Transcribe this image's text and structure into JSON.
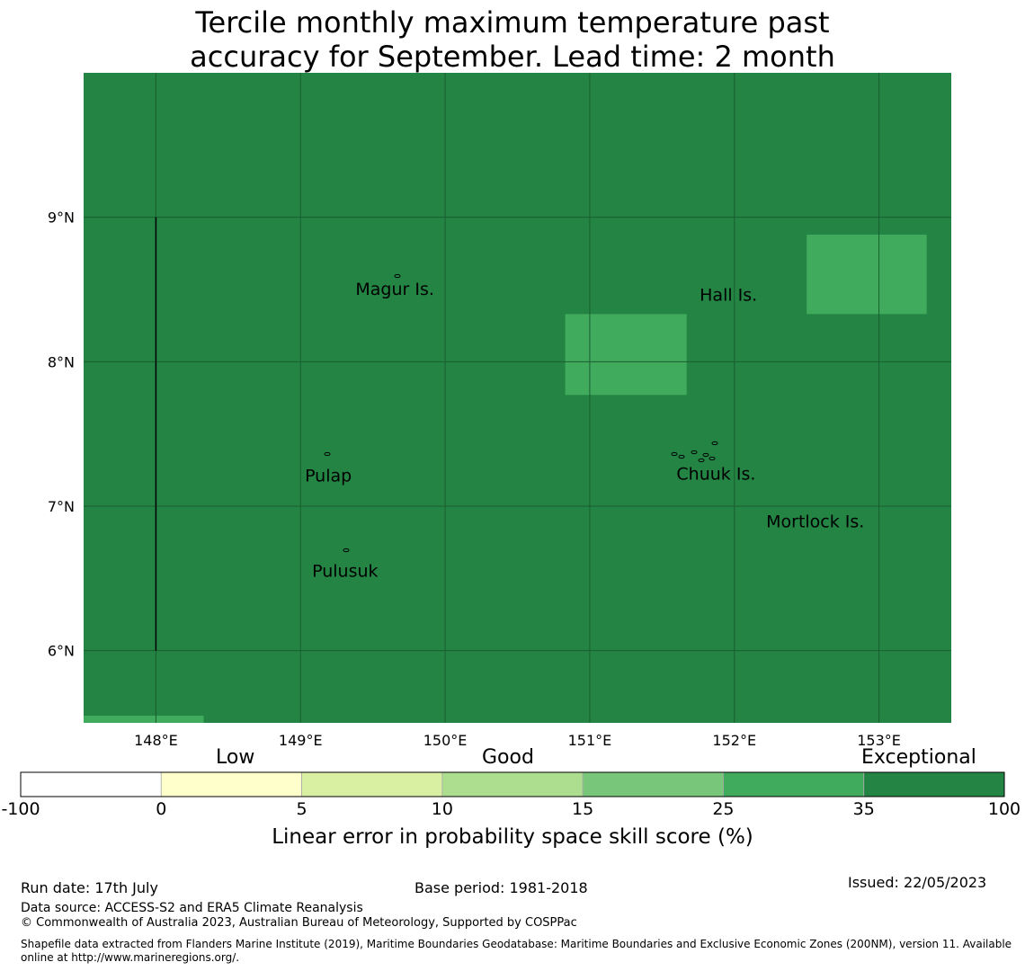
{
  "title": {
    "line1": "Tercile monthly maximum temperature past",
    "line2": "accuracy for September. Lead time: 2 month"
  },
  "map": {
    "lon_range": [
      147.5,
      153.5
    ],
    "lat_range": [
      5.5,
      10.0
    ],
    "x_ticks": [
      {
        "lon": 148,
        "label": "148°E"
      },
      {
        "lon": 149,
        "label": "149°E"
      },
      {
        "lon": 150,
        "label": "150°E"
      },
      {
        "lon": 151,
        "label": "151°E"
      },
      {
        "lon": 152,
        "label": "152°E"
      },
      {
        "lon": 153,
        "label": "153°E"
      }
    ],
    "y_ticks": [
      {
        "lat": 6,
        "label": "6°N"
      },
      {
        "lat": 7,
        "label": "7°N"
      },
      {
        "lat": 8,
        "label": "8°N"
      },
      {
        "lat": 9,
        "label": "9°N"
      }
    ],
    "background_color": "#238443",
    "gridline_color": "#1a5e30",
    "cells": [
      {
        "lon0": 150.83,
        "lon1": 151.67,
        "lat0": 7.77,
        "lat1": 8.33,
        "color": "#41ab5d"
      },
      {
        "lon0": 152.5,
        "lon1": 153.33,
        "lat0": 8.33,
        "lat1": 8.88,
        "color": "#41ab5d"
      },
      {
        "lon0": 147.5,
        "lon1": 148.33,
        "lat0": 5.5,
        "lat1": 5.55,
        "color": "#41ab5d"
      }
    ],
    "boundary_line": {
      "lon": 148.0,
      "lat0": 6.0,
      "lat1": 9.0
    },
    "places": [
      {
        "name": "Magur Is.",
        "lon": 149.38,
        "lat": 8.5
      },
      {
        "name": "Hall Is.",
        "lon": 151.76,
        "lat": 8.46
      },
      {
        "name": "Pulap",
        "lon": 149.03,
        "lat": 7.21
      },
      {
        "name": "Chuuk Is.",
        "lon": 151.6,
        "lat": 7.22
      },
      {
        "name": "Mortlock Is.",
        "lon": 152.22,
        "lat": 6.89
      },
      {
        "name": "Pulusuk",
        "lon": 149.08,
        "lat": 6.55
      }
    ]
  },
  "chart_data": {
    "type": "heatmap",
    "title": "Tercile monthly maximum temperature past accuracy for September. Lead time: 2 month",
    "xlabel": "",
    "ylabel": "",
    "xlim": [
      147.5,
      153.5
    ],
    "ylim": [
      5.5,
      10.0
    ],
    "colorbar": {
      "label": "Linear error in probability space skill score (%)",
      "boundaries": [
        -100,
        0,
        5,
        10,
        15,
        25,
        35,
        100
      ],
      "boundary_labels": [
        "-100",
        "0",
        "5",
        "10",
        "15",
        "25",
        "35",
        "100"
      ],
      "colors": [
        "#ffffff",
        "#ffffcc",
        "#d9f0a3",
        "#addd8e",
        "#78c679",
        "#41ab5d",
        "#238443"
      ],
      "categories": [
        {
          "label": "Low",
          "position": 0
        },
        {
          "label": "Good",
          "position": 10
        },
        {
          "label": "Exceptional",
          "position": 100
        }
      ]
    }
  },
  "footer": {
    "run_date": "Run date: 17th July",
    "base_period": "Base period: 1981-2018",
    "issued": "Issued: 22/05/2023",
    "data_source": "Data source: ACCESS-S2 and ERA5 Climate Reanalysis",
    "copyright": "© Commonwealth of Australia 2023, Australian Bureau of Meteorology, Supported by COSPPac",
    "shapefile": "Shapefile data extracted from Flanders Marine Institute (2019), Maritime Boundaries Geodatabase: Maritime Boundaries and Exclusive Economic Zones (200NM), version 11. Available online at http://www.marineregions.org/."
  }
}
